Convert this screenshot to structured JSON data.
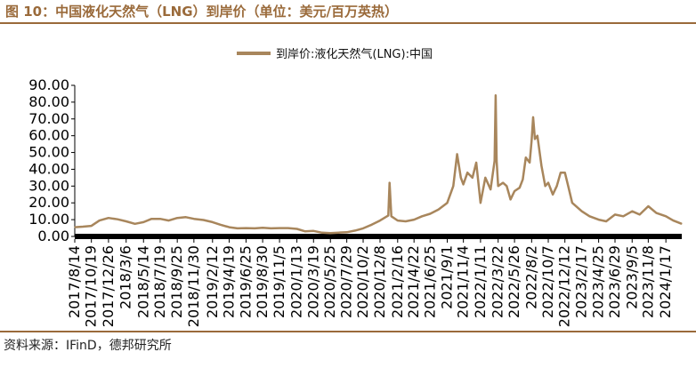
{
  "figure": {
    "title": "图 10：中国液化天然气（LNG）到岸价（单位：美元/百万英热）",
    "source": "资料来源：IFinD，德邦研究所",
    "colors": {
      "line": "#a8865c",
      "accent": "#9a6a3a",
      "axis": "#000000"
    }
  },
  "chart_data": {
    "type": "line",
    "title": "",
    "xlabel": "",
    "ylabel": "",
    "ylim": [
      0,
      90
    ],
    "yticks": [
      "0.00",
      "10.00",
      "20.00",
      "30.00",
      "40.00",
      "50.00",
      "60.00",
      "70.00",
      "80.00",
      "90.00"
    ],
    "xticks": [
      "2017/8/14",
      "2017/10/19",
      "2017/12/26",
      "2018/3/6",
      "2018/5/14",
      "2018/7/19",
      "2018/9/25",
      "2018/11/30",
      "2019/2/12",
      "2019/4/19",
      "2019/6/25",
      "2019/8/30",
      "2019/11/5",
      "2020/1/13",
      "2020/3/19",
      "2020/5/25",
      "2020/7/29",
      "2020/10/2",
      "2020/12/8",
      "2021/2/16",
      "2021/4/22",
      "2021/6/25",
      "2021/9/1",
      "2021/11/4",
      "2022/1/11",
      "2022/3/22",
      "2022/5/26",
      "2022/8/2",
      "2022/10/7",
      "2022/12/12",
      "2023/2/17",
      "2023/4/25",
      "2023/6/29",
      "2023/9/5",
      "2023/11/8",
      "2024/1/17"
    ],
    "legend": {
      "position": "top-center"
    },
    "grid": false,
    "series": [
      {
        "name": "到岸价:液化天然气(LNG):中国",
        "x": [
          "2017/8/14",
          "2017/9/15",
          "2017/10/19",
          "2017/11/20",
          "2017/12/26",
          "2018/1/31",
          "2018/3/6",
          "2018/4/10",
          "2018/5/14",
          "2018/6/15",
          "2018/7/19",
          "2018/8/22",
          "2018/9/25",
          "2018/10/29",
          "2018/11/30",
          "2019/1/7",
          "2019/2/12",
          "2019/3/15",
          "2019/4/19",
          "2019/5/22",
          "2019/6/25",
          "2019/7/29",
          "2019/8/30",
          "2019/10/2",
          "2019/11/5",
          "2019/12/9",
          "2020/1/13",
          "2020/2/15",
          "2020/3/19",
          "2020/4/22",
          "2020/5/25",
          "2020/6/27",
          "2020/7/29",
          "2020/8/31",
          "2020/10/2",
          "2020/11/5",
          "2020/12/8",
          "2021/1/10",
          "2021/1/15",
          "2021/1/22",
          "2021/2/16",
          "2021/3/20",
          "2021/4/22",
          "2021/5/24",
          "2021/6/25",
          "2021/7/28",
          "2021/9/1",
          "2021/9/25",
          "2021/10/10",
          "2021/10/25",
          "2021/11/4",
          "2021/11/20",
          "2021/12/10",
          "2021/12/25",
          "2022/1/11",
          "2022/1/30",
          "2022/2/20",
          "2022/3/8",
          "2022/3/12",
          "2022/3/16",
          "2022/3/22",
          "2022/4/10",
          "2022/4/25",
          "2022/5/10",
          "2022/5/26",
          "2022/6/15",
          "2022/6/28",
          "2022/7/10",
          "2022/7/25",
          "2022/8/2",
          "2022/8/8",
          "2022/8/15",
          "2022/8/25",
          "2022/9/10",
          "2022/9/25",
          "2022/10/7",
          "2022/10/25",
          "2022/11/10",
          "2022/11/25",
          "2022/12/12",
          "2022/12/25",
          "2023/1/10",
          "2023/2/17",
          "2023/3/20",
          "2023/4/25",
          "2023/5/25",
          "2023/6/29",
          "2023/8/1",
          "2023/9/5",
          "2023/10/5",
          "2023/11/8",
          "2023/12/10",
          "2024/1/17",
          "2024/2/15",
          "2024/3/20"
        ],
        "values": [
          5.5,
          5.8,
          6.3,
          9.5,
          11.0,
          10.2,
          9.0,
          7.5,
          8.5,
          10.5,
          10.5,
          9.5,
          11.0,
          11.5,
          10.5,
          9.8,
          8.5,
          7.0,
          5.5,
          4.8,
          5.0,
          4.8,
          5.2,
          4.8,
          5.0,
          5.0,
          4.5,
          3.0,
          3.3,
          2.2,
          2.0,
          2.3,
          2.5,
          3.5,
          4.8,
          7.0,
          9.5,
          12.5,
          32.0,
          12.0,
          9.5,
          9.0,
          10.0,
          12.0,
          13.5,
          16.0,
          20.0,
          30.0,
          49.0,
          35.0,
          31.0,
          38.0,
          35.0,
          44.0,
          20.0,
          35.0,
          28.0,
          45.0,
          84.0,
          45.0,
          30.0,
          32.0,
          30.0,
          22.0,
          27.0,
          29.0,
          34.0,
          47.0,
          44.0,
          57.0,
          71.0,
          58.0,
          60.0,
          42.0,
          30.0,
          32.0,
          25.0,
          30.0,
          38.0,
          38.0,
          30.0,
          20.0,
          15.0,
          12.0,
          10.0,
          9.0,
          13.0,
          12.0,
          15.0,
          13.0,
          18.0,
          14.0,
          12.0,
          9.5,
          7.5
        ]
      }
    ]
  }
}
